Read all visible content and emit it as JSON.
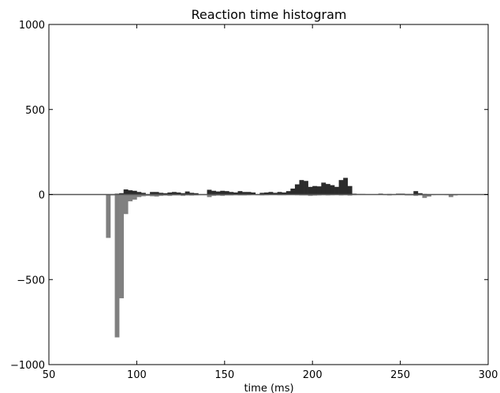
{
  "chart_data": {
    "type": "bar",
    "title": "Reaction time histogram",
    "xlabel": "time (ms)",
    "ylabel": "",
    "xlim": [
      50,
      300
    ],
    "ylim": [
      -1000,
      1000
    ],
    "grid": false,
    "legend": "none",
    "bin_width": 2.5,
    "x_ticks": [
      50,
      100,
      150,
      200,
      250,
      300
    ],
    "y_ticks": [
      -1000,
      -500,
      0,
      500,
      1000
    ],
    "x_tick_labels": [
      "50",
      "100",
      "150",
      "200",
      "250",
      "300"
    ],
    "y_tick_labels": [
      "−1000",
      "−500",
      "0",
      "500",
      "1000"
    ],
    "colors": {
      "positive": "#2b2b2b",
      "negative": "#808080",
      "baseline": "#555555",
      "axes": "#000000"
    },
    "series": [
      {
        "bin_starts": [
          87.5,
          90,
          92.5,
          95,
          97.5,
          100,
          102.5,
          107.5,
          110,
          112.5,
          115,
          117.5,
          120,
          122.5,
          125,
          127.5,
          130,
          132.5,
          140,
          142.5,
          145,
          147.5,
          150,
          152.5,
          155,
          157.5,
          160,
          162.5,
          165,
          170,
          172.5,
          175,
          177.5,
          180,
          182.5,
          185,
          187.5,
          190,
          192.5,
          195,
          197.5,
          200,
          202.5,
          205,
          207.5,
          210,
          212.5,
          215,
          217.5,
          220,
          222.5,
          225,
          227.5,
          237.5,
          242.5,
          247.5,
          250,
          252.5,
          255,
          257.5,
          260,
          262.5
        ],
        "values": [
          5,
          8,
          30,
          25,
          22,
          15,
          10,
          15,
          15,
          10,
          8,
          12,
          15,
          12,
          8,
          18,
          10,
          8,
          28,
          22,
          18,
          22,
          20,
          15,
          12,
          20,
          15,
          15,
          12,
          10,
          12,
          15,
          10,
          15,
          12,
          20,
          35,
          60,
          85,
          80,
          45,
          50,
          48,
          70,
          62,
          55,
          45,
          85,
          98,
          50,
          5,
          3,
          3,
          5,
          3,
          5,
          5,
          3,
          3,
          20,
          8,
          3
        ]
      },
      {
        "bin_starts": [
          82.5,
          85,
          87.5,
          90,
          92.5,
          95,
          97.5,
          100,
          102.5,
          105,
          107.5,
          110,
          112.5,
          115,
          117.5,
          120,
          122.5,
          125,
          127.5,
          130,
          132.5,
          135,
          137.5,
          140,
          142.5,
          145,
          147.5,
          150,
          152.5,
          155,
          157.5,
          160,
          162.5,
          165,
          167.5,
          170,
          172.5,
          175,
          177.5,
          180,
          182.5,
          185,
          187.5,
          190,
          192.5,
          195,
          197.5,
          200,
          202.5,
          205,
          207.5,
          210,
          212.5,
          215,
          217.5,
          220,
          222.5,
          225,
          227.5,
          230,
          232.5,
          235,
          237.5,
          240,
          242.5,
          245,
          247.5,
          250,
          252.5,
          255,
          257.5,
          260,
          262.5,
          265,
          267.5,
          270,
          272.5,
          275,
          277.5,
          280,
          282.5
        ],
        "values": [
          -255,
          -5,
          -840,
          -610,
          -115,
          -40,
          -30,
          -15,
          -10,
          -8,
          -10,
          -12,
          -8,
          -6,
          -8,
          -5,
          -5,
          -8,
          -5,
          -6,
          -5,
          -4,
          -4,
          -15,
          -8,
          -6,
          -8,
          -5,
          -5,
          -4,
          -5,
          -5,
          -4,
          -3,
          -4,
          -5,
          -4,
          -3,
          -3,
          -4,
          -4,
          -3,
          -3,
          -4,
          -5,
          -5,
          -8,
          -6,
          -5,
          -4,
          -5,
          -4,
          -3,
          -5,
          -4,
          -6,
          -3,
          -2,
          -2,
          -2,
          -2,
          -2,
          -2,
          -3,
          -5,
          -3,
          -2,
          -2,
          -5,
          -5,
          -8,
          -5,
          -20,
          -12,
          -3,
          -2,
          -2,
          -3,
          -15,
          -5,
          -2
        ]
      }
    ]
  }
}
